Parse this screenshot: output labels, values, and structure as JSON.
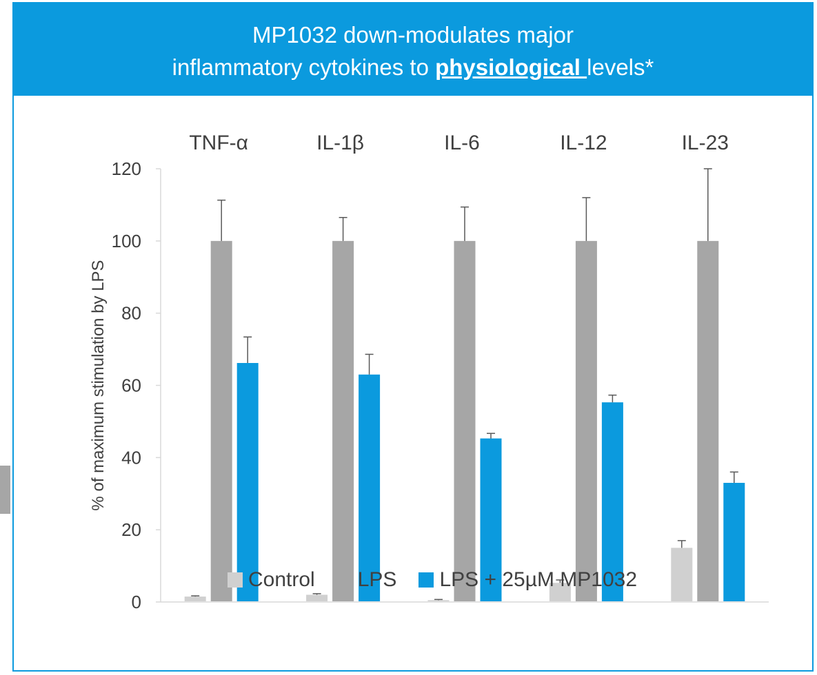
{
  "banner": {
    "title_line1": "MP1032 down-modulates major",
    "title_line2_prefix": "inflammatory cytokines to ",
    "title_line2_emphasis": "physiological ",
    "title_line2_suffix": "levels*",
    "color": "#0b9ade"
  },
  "chart_data": {
    "type": "bar",
    "categories": [
      "TNF-α",
      "IL-1β",
      "IL-6",
      "IL-12",
      "IL-23"
    ],
    "series": [
      {
        "name": "Control",
        "color": "#d0d0d0",
        "values": [
          1.5,
          2,
          0.5,
          5.3,
          15
        ],
        "errors": [
          0.2,
          0.3,
          0.2,
          0.8,
          2
        ]
      },
      {
        "name": "LPS",
        "color": "#a6a6a6",
        "values": [
          100,
          100,
          100,
          100,
          100
        ],
        "errors": [
          11.3,
          6.5,
          9.4,
          12,
          20
        ]
      },
      {
        "name": "LPS + 25µM MP1032",
        "color": "#0b9ade",
        "values": [
          66.2,
          63,
          45.3,
          55.3,
          33
        ],
        "errors": [
          7.2,
          5.6,
          1.4,
          2,
          3
        ]
      }
    ],
    "ylabel": "% of maximum stimulation by LPS",
    "ylim": [
      0,
      120
    ],
    "yticks": [
      0,
      20,
      40,
      60,
      80,
      100,
      120
    ],
    "category_labels_position": "top",
    "legend_position": "bottom",
    "grid": false
  }
}
